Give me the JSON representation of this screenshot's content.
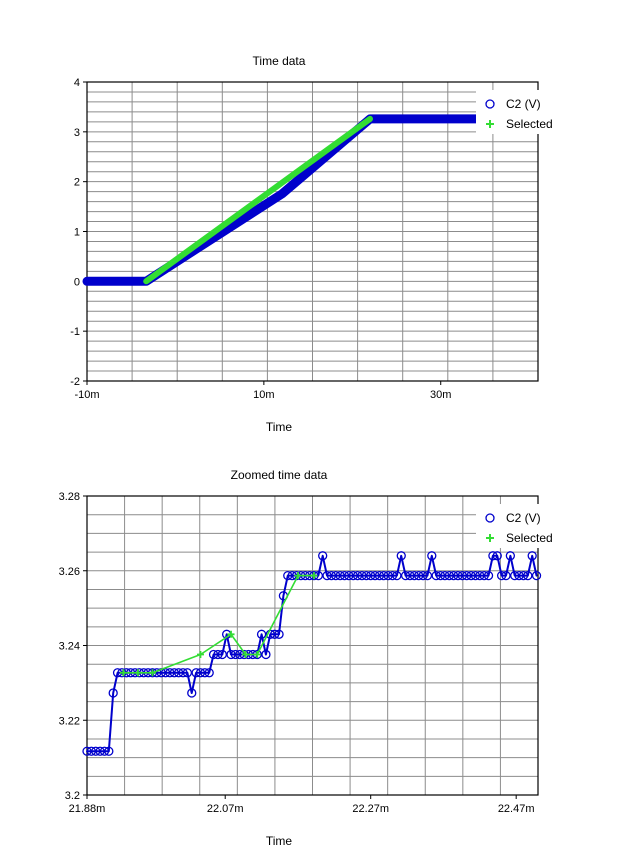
{
  "chart_data": [
    {
      "type": "line",
      "title": "Time data",
      "xlabel": "Time",
      "ylabel": "",
      "xlim": [
        -0.01,
        0.041
      ],
      "ylim": [
        -2,
        4
      ],
      "x_ticks": [
        {
          "value": -0.01,
          "label": "-10m"
        },
        {
          "value": 0.01,
          "label": "10m"
        },
        {
          "value": 0.03,
          "label": "30m"
        }
      ],
      "y_ticks": [
        {
          "value": 4,
          "label": "4"
        },
        {
          "value": 3,
          "label": "3"
        },
        {
          "value": 2,
          "label": "2"
        },
        {
          "value": 1,
          "label": "1"
        },
        {
          "value": 0,
          "label": "0"
        },
        {
          "value": -1,
          "label": "-1"
        },
        {
          "value": -2,
          "label": "-2"
        }
      ],
      "grid": true,
      "legend": "top-right",
      "series": [
        {
          "name": "C2 (V)",
          "color": "#0000cc",
          "marker": "circle",
          "x": [
            -0.01,
            -0.0033,
            0.0121,
            0.022,
            0.041
          ],
          "y": [
            0.0,
            0.0,
            1.76,
            3.26,
            3.26
          ]
        },
        {
          "name": "Selected",
          "color": "#33dd33",
          "marker": "plus",
          "x": [
            -0.0033,
            0.022
          ],
          "y": [
            0.0,
            3.26
          ]
        }
      ]
    },
    {
      "type": "line",
      "title": "Zoomed time data",
      "xlabel": "Time",
      "ylabel": "",
      "xlim": [
        0.02188,
        0.0225
      ],
      "ylim": [
        3.2,
        3.28
      ],
      "x_ticks": [
        {
          "value": 0.02188,
          "label": "21.88m"
        },
        {
          "value": 0.02207,
          "label": "22.07m"
        },
        {
          "value": 0.02227,
          "label": "22.27m"
        },
        {
          "value": 0.02247,
          "label": "22.47m"
        }
      ],
      "y_ticks": [
        {
          "value": 3.28,
          "label": "3.28"
        },
        {
          "value": 3.26,
          "label": "3.26"
        },
        {
          "value": 3.24,
          "label": "3.24"
        },
        {
          "value": 3.22,
          "label": "3.22"
        },
        {
          "value": 3.2,
          "label": "3.2"
        }
      ],
      "grid": true,
      "legend": "top-right",
      "series": [
        {
          "name": "C2 (V)",
          "color": "#0000cc",
          "marker": "circle",
          "x": [
            0.02188,
            0.021886,
            0.021892,
            0.021898,
            0.021904,
            0.02191,
            0.021916,
            0.021922,
            0.021928,
            0.021934,
            0.02194,
            0.021946,
            0.021952,
            0.021958,
            0.021964,
            0.02197,
            0.021976,
            0.021982,
            0.021988,
            0.021994,
            0.022,
            0.022006,
            0.022012,
            0.022018,
            0.022024,
            0.02203,
            0.022036,
            0.022042,
            0.022048,
            0.022054,
            0.02206,
            0.022066,
            0.022072,
            0.022078,
            0.022084,
            0.02209,
            0.022096,
            0.022102,
            0.022108,
            0.022114,
            0.02212,
            0.022126,
            0.022132,
            0.022138,
            0.022144,
            0.02215,
            0.022156,
            0.022162,
            0.022168,
            0.022174,
            0.02218,
            0.022186,
            0.022192,
            0.022198,
            0.022204,
            0.02221,
            0.022216,
            0.022222,
            0.022228,
            0.022234,
            0.02224,
            0.022246,
            0.022252,
            0.022258,
            0.022264,
            0.02227,
            0.022276,
            0.022282,
            0.022288,
            0.022294,
            0.0223,
            0.022306,
            0.022312,
            0.022318,
            0.022324,
            0.02233,
            0.022336,
            0.022342,
            0.022348,
            0.022354,
            0.02236,
            0.022366,
            0.022372,
            0.022378,
            0.022384,
            0.02239,
            0.022396,
            0.022402,
            0.022408,
            0.022414,
            0.02242,
            0.022426,
            0.022432,
            0.022438,
            0.022444,
            0.02245,
            0.022456,
            0.022462,
            0.022468,
            0.022474,
            0.02248,
            0.022486,
            0.022492,
            0.022498
          ],
          "y": [
            3.2117,
            3.2117,
            3.2117,
            3.2117,
            3.2117,
            3.2117,
            3.2273,
            3.2327,
            3.2327,
            3.2327,
            3.2327,
            3.2327,
            3.2327,
            3.2327,
            3.2327,
            3.2327,
            3.2327,
            3.2327,
            3.2327,
            3.2327,
            3.2327,
            3.2327,
            3.2327,
            3.2327,
            3.2273,
            3.2327,
            3.2327,
            3.2327,
            3.2327,
            3.2376,
            3.2376,
            3.2376,
            3.243,
            3.2376,
            3.2376,
            3.2376,
            3.2376,
            3.2376,
            3.2376,
            3.2376,
            3.243,
            3.2376,
            3.243,
            3.243,
            3.243,
            3.2533,
            3.2587,
            3.2587,
            3.2587,
            3.2587,
            3.2587,
            3.2587,
            3.2587,
            3.2587,
            3.264,
            3.2587,
            3.2587,
            3.2587,
            3.2587,
            3.2587,
            3.2587,
            3.2587,
            3.2587,
            3.2587,
            3.2587,
            3.2587,
            3.2587,
            3.2587,
            3.2587,
            3.2587,
            3.2587,
            3.2587,
            3.264,
            3.2587,
            3.2587,
            3.2587,
            3.2587,
            3.2587,
            3.2587,
            3.264,
            3.2587,
            3.2587,
            3.2587,
            3.2587,
            3.2587,
            3.2587,
            3.2587,
            3.2587,
            3.2587,
            3.2587,
            3.2587,
            3.2587,
            3.2587,
            3.264,
            3.264,
            3.2587,
            3.2587,
            3.264,
            3.2587,
            3.2587,
            3.2587,
            3.2587,
            3.264,
            3.2587
          ]
        },
        {
          "name": "Selected",
          "color": "#33dd33",
          "marker": "plus",
          "x": [
            0.02193,
            0.02195,
            0.02197,
            0.022036,
            0.022078,
            0.022098,
            0.022114,
            0.02217,
            0.022192
          ],
          "y": [
            3.2327,
            3.2327,
            3.2327,
            3.2376,
            3.243,
            3.2376,
            3.2376,
            3.2587,
            3.2587
          ]
        }
      ]
    }
  ]
}
